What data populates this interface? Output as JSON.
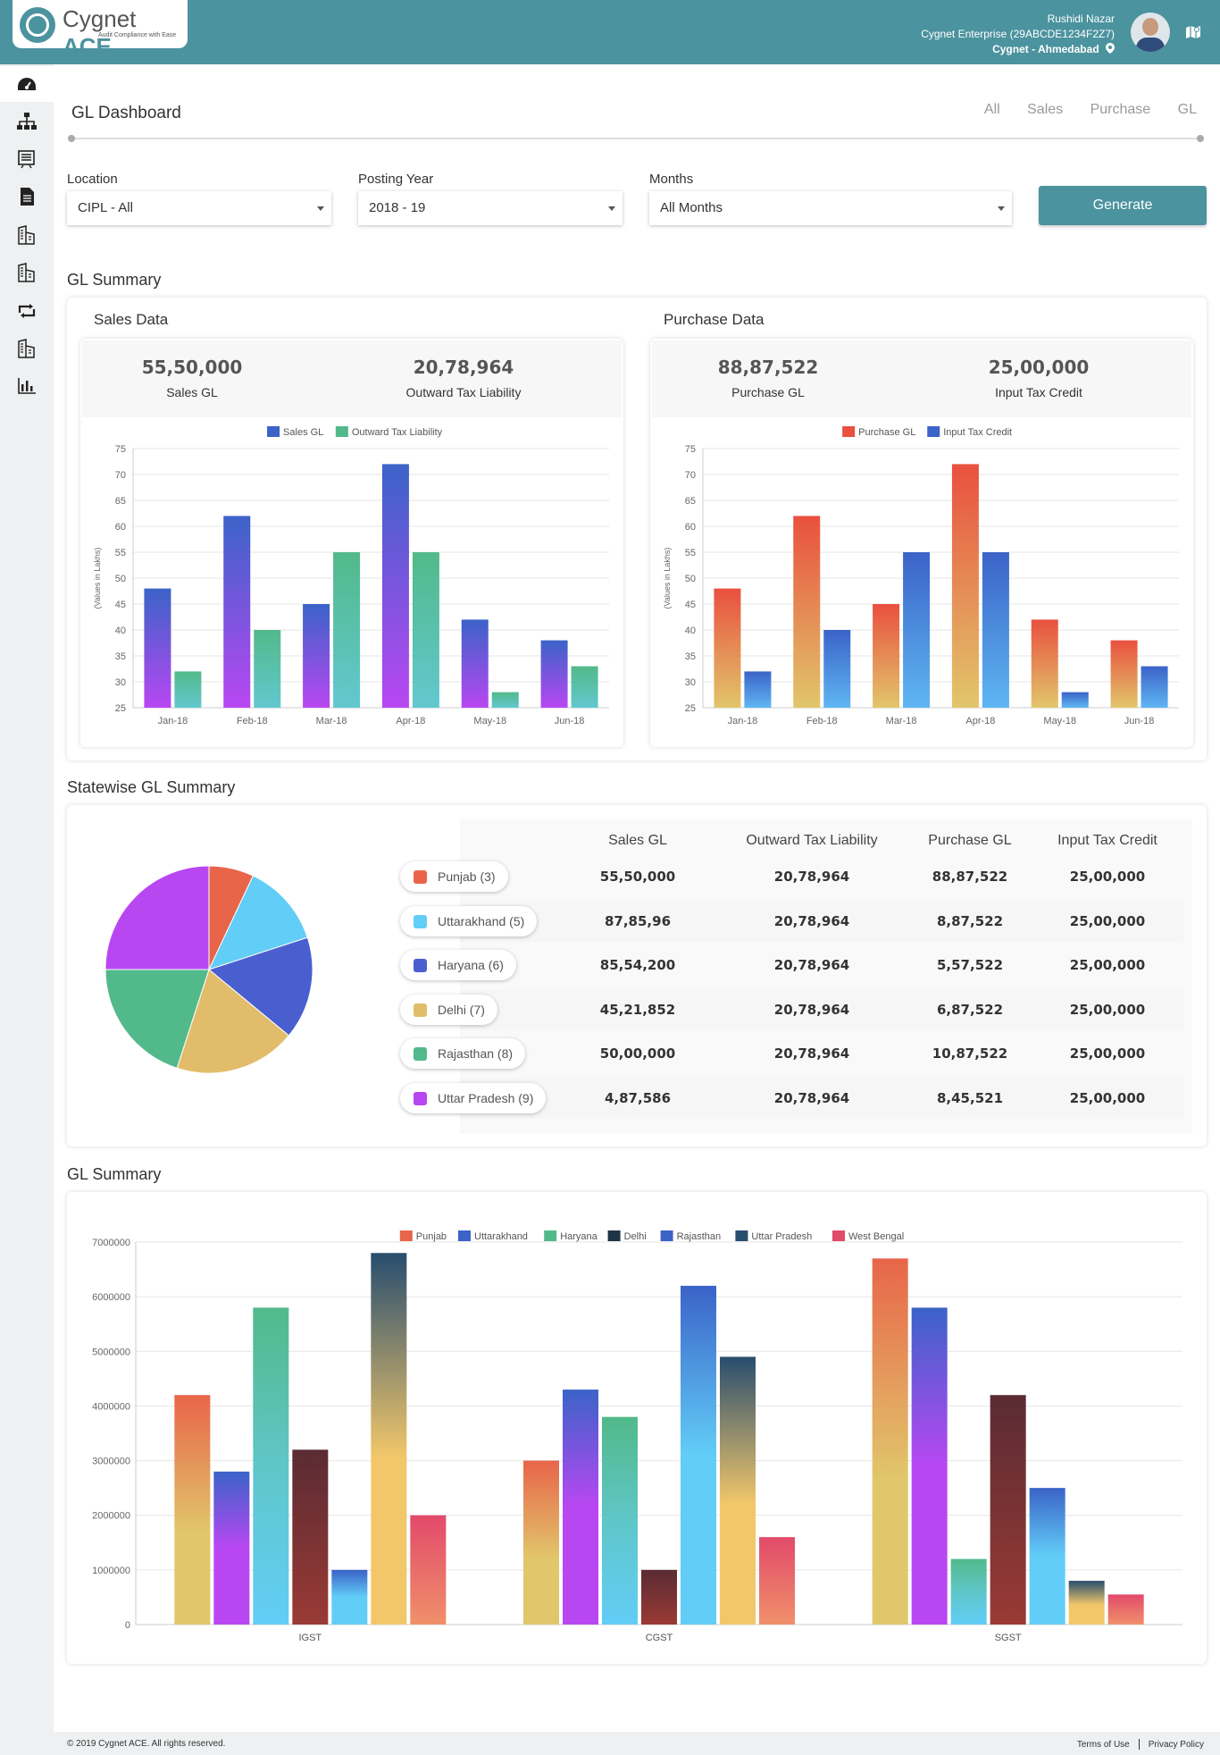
{
  "app": {
    "brand_main": "Cygnet",
    "brand_accent": "ACE",
    "tagline": "Audit  Compliance with Ease"
  },
  "user": {
    "name": "Rushidi Nazar",
    "company": "Cygnet Enterprise (29ABCDE1234F2Z7)",
    "location": "Cygnet - Ahmedabad"
  },
  "sidebar": {
    "items": [
      {
        "icon": "dashboard-icon"
      },
      {
        "icon": "sitemap-icon"
      },
      {
        "icon": "report-icon"
      },
      {
        "icon": "document-icon"
      },
      {
        "icon": "building-icon"
      },
      {
        "icon": "building-icon"
      },
      {
        "icon": "retweet-icon"
      },
      {
        "icon": "building-icon"
      },
      {
        "icon": "bar-chart-icon"
      }
    ]
  },
  "page": {
    "title": "GL Dashboard",
    "tabs": [
      "All",
      "Sales",
      "Purchase",
      "GL"
    ]
  },
  "filters": {
    "location": {
      "label": "Location",
      "value": "CIPL - All"
    },
    "posting_year": {
      "label": "Posting Year",
      "value": "2018 - 19"
    },
    "months": {
      "label": "Months",
      "value": "All Months"
    },
    "generate_label": "Generate"
  },
  "gl_summary": {
    "title": "GL Summary",
    "sales": {
      "title": "Sales Data",
      "stat1_value": "55,50,000",
      "stat1_label": "Sales GL",
      "stat2_value": "20,78,964",
      "stat2_label": "Outward Tax Liability"
    },
    "purchase": {
      "title": "Purchase Data",
      "stat1_value": "88,87,522",
      "stat1_label": "Purchase GL",
      "stat2_value": "25,00,000",
      "stat2_label": "Input Tax Credit"
    }
  },
  "statewise": {
    "title": "Statewise GL Summary",
    "headers": [
      "Sales GL",
      "Outward Tax Liability",
      "Purchase GL",
      "Input Tax Credit"
    ],
    "rows": [
      {
        "state": "Punjab (3)",
        "color": "#e8654a",
        "values": [
          "55,50,000",
          "20,78,964",
          "88,87,522",
          "25,00,000"
        ]
      },
      {
        "state": "Uttarakhand (5)",
        "color": "#62cdf7",
        "values": [
          "87,85,96",
          "20,78,964",
          "8,87,522",
          "25,00,000"
        ]
      },
      {
        "state": "Haryana (6)",
        "color": "#4a5fcf",
        "values": [
          "85,54,200",
          "20,78,964",
          "5,57,522",
          "25,00,000"
        ]
      },
      {
        "state": "Delhi (7)",
        "color": "#e1bd6b",
        "values": [
          "45,21,852",
          "20,78,964",
          "6,87,522",
          "25,00,000"
        ]
      },
      {
        "state": "Rajasthan (8)",
        "color": "#52b98a",
        "values": [
          "50,00,000",
          "20,78,964",
          "10,87,522",
          "25,00,000"
        ]
      },
      {
        "state": "Uttar Pradesh (9)",
        "color": "#b847f2",
        "values": [
          "4,87,586",
          "20,78,964",
          "8,45,521",
          "25,00,000"
        ]
      }
    ]
  },
  "gl_summary2": {
    "title": "GL Summary"
  },
  "footer": {
    "copyright": "© 2019 Cygnet ACE. All rights reserved.",
    "terms": "Terms of Use",
    "privacy": "Privacy Policy"
  },
  "chart_data": [
    {
      "type": "bar",
      "title": "Sales Data",
      "ylabel": "(Values in Lakhs)",
      "ylim": [
        25,
        75
      ],
      "yticks": [
        25,
        30,
        35,
        40,
        45,
        50,
        55,
        60,
        65,
        70,
        75
      ],
      "categories": [
        "Jan-18",
        "Feb-18",
        "Mar-18",
        "Apr-18",
        "May-18",
        "Jun-18"
      ],
      "series": [
        {
          "name": "Sales GL",
          "color": "#3b63c8",
          "values": [
            48,
            62,
            45,
            72,
            42,
            38
          ]
        },
        {
          "name": "Outward Tax Liability",
          "color": "#52b98a",
          "values": [
            32,
            40,
            55,
            55,
            28,
            33
          ]
        }
      ]
    },
    {
      "type": "bar",
      "title": "Purchase Data",
      "ylabel": "(Values in Lakhs)",
      "ylim": [
        25,
        75
      ],
      "yticks": [
        25,
        30,
        35,
        40,
        45,
        50,
        55,
        60,
        65,
        70,
        75
      ],
      "categories": [
        "Jan-18",
        "Feb-18",
        "Mar-18",
        "Apr-18",
        "May-18",
        "Jun-18"
      ],
      "series": [
        {
          "name": "Purchase GL",
          "color": "#e9503f",
          "values": [
            48,
            62,
            45,
            72,
            42,
            38
          ]
        },
        {
          "name": "Input Tax Credit",
          "color": "#3b63c8",
          "values": [
            32,
            40,
            55,
            55,
            28,
            33
          ]
        }
      ]
    },
    {
      "type": "pie",
      "title": "Statewise GL Summary",
      "labels": [
        "Punjab (3)",
        "Uttarakhand (5)",
        "Haryana (6)",
        "Delhi (7)",
        "Rajasthan (8)",
        "Uttar Pradesh (9)"
      ],
      "values": [
        7,
        13,
        16,
        19,
        20,
        25
      ],
      "colors": [
        "#e8654a",
        "#62cdf7",
        "#4a5fcf",
        "#e1bd6b",
        "#52b98a",
        "#b847f2"
      ]
    },
    {
      "type": "bar",
      "title": "GL Summary",
      "ylim": [
        0,
        7000000
      ],
      "yticks": [
        0,
        1000000,
        2000000,
        3000000,
        4000000,
        5000000,
        6000000,
        7000000
      ],
      "categories": [
        "IGST",
        "CGST",
        "SGST"
      ],
      "series": [
        {
          "name": "Punjab",
          "color": "#e8654a",
          "values": [
            4200000,
            3000000,
            6700000
          ]
        },
        {
          "name": "Uttarakhand",
          "color": "#3b63c8",
          "values": [
            2800000,
            4300000,
            5800000
          ]
        },
        {
          "name": "Haryana",
          "color": "#52b98a",
          "values": [
            5800000,
            3800000,
            1200000
          ]
        },
        {
          "name": "Delhi",
          "color": "#203447",
          "values": [
            3200000,
            1000000,
            4200000
          ]
        },
        {
          "name": "Rajasthan",
          "color": "#3b63c8",
          "values": [
            1000000,
            6200000,
            2500000
          ]
        },
        {
          "name": "Uttar Pradesh",
          "color": "#284d6e",
          "values": [
            6800000,
            4900000,
            800000
          ]
        },
        {
          "name": "West Bengal",
          "color": "#e24a6a",
          "values": [
            2000000,
            1600000,
            550000
          ]
        }
      ]
    }
  ]
}
